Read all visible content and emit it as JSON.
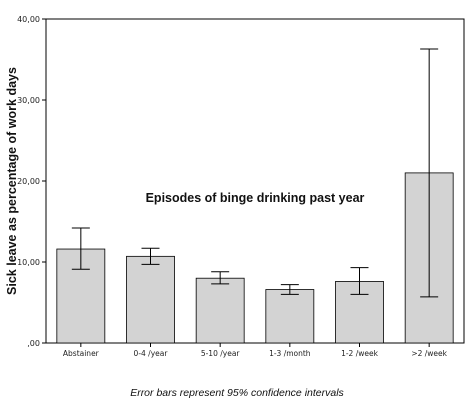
{
  "chart_data": {
    "type": "bar",
    "categories": [
      "Abstainer",
      "0-4 /year",
      "5-10 /year",
      "1-3 /month",
      "1-2 /week",
      ">2 /week"
    ],
    "values": [
      11.6,
      10.7,
      8.0,
      6.6,
      7.6,
      21.0
    ],
    "error_bars": {
      "lower": [
        9.1,
        9.7,
        7.3,
        6.0,
        6.0,
        5.7
      ],
      "upper": [
        14.2,
        11.7,
        8.8,
        7.2,
        9.3,
        36.3
      ]
    },
    "ylabel": "Sick leave as percentage of work days",
    "xlabel": "Episodes of binge drinking past year",
    "ylim": [
      0,
      40
    ],
    "yticks": [
      0,
      10,
      20,
      30,
      40
    ],
    "ytick_labels": [
      ",00",
      "10,00",
      "20,00",
      "30,00",
      "40,00"
    ],
    "grid": false,
    "bar_color": "#d3d3d3",
    "note": "Error bars represent 95% confidence intervals"
  }
}
